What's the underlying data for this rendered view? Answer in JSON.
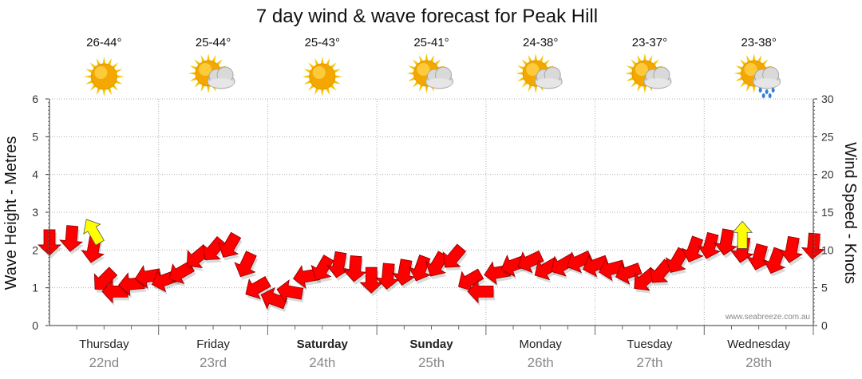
{
  "chart_data": {
    "type": "line",
    "title": "7 day wind & wave forecast for Peak Hill",
    "ylabel_left": "Wave Height - Metres",
    "ylabel_right": "Wind Speed - Knots",
    "ylim_left": [
      0,
      6
    ],
    "ylim_right": [
      0,
      30
    ],
    "yticks_left": [
      "0",
      "1",
      "2",
      "3",
      "4",
      "5",
      "6"
    ],
    "yticks_right": [
      "0",
      "5",
      "10",
      "15",
      "20",
      "25",
      "30"
    ],
    "days": [
      {
        "day": "Thursday",
        "date": "22nd",
        "temp": "26-44°",
        "icon": "sunny-icon",
        "bold": false
      },
      {
        "day": "Friday",
        "date": "23rd",
        "temp": "25-44°",
        "icon": "partly-cloudy-icon",
        "bold": false
      },
      {
        "day": "Saturday",
        "date": "24th",
        "temp": "25-43°",
        "icon": "sunny-icon",
        "bold": true
      },
      {
        "day": "Sunday",
        "date": "25th",
        "temp": "25-41°",
        "icon": "partly-cloudy-icon",
        "bold": true
      },
      {
        "day": "Monday",
        "date": "26th",
        "temp": "24-38°",
        "icon": "partly-cloudy-icon",
        "bold": false
      },
      {
        "day": "Tuesday",
        "date": "27th",
        "temp": "23-37°",
        "icon": "partly-cloudy-icon",
        "bold": false
      },
      {
        "day": "Wednesday",
        "date": "28th",
        "temp": "23-38°",
        "icon": "showers-icon",
        "bold": false
      }
    ],
    "series": [
      {
        "name": "Wind",
        "unit": "knots",
        "color": "#ff0000",
        "x_day": [
          0,
          0.2,
          0.4,
          0.5,
          0.6,
          0.75,
          0.9,
          1.05,
          1.2,
          1.35,
          1.5,
          1.65,
          1.8,
          1.9,
          2.05,
          2.2,
          2.35,
          2.5,
          2.65,
          2.8,
          2.95,
          3.1,
          3.25,
          3.4,
          3.55,
          3.7,
          3.85,
          3.95,
          4.1,
          4.25,
          4.4,
          4.55,
          4.7,
          4.85,
          5.0,
          5.15,
          5.3,
          5.45,
          5.6,
          5.75,
          5.9,
          6.05,
          6.2,
          6.35,
          6.5,
          6.65,
          6.8,
          7.0
        ],
        "speed_knots": [
          11,
          11.5,
          10,
          6,
          4.5,
          5.5,
          6.5,
          6,
          7,
          9,
          10,
          10.5,
          8,
          5,
          3.5,
          4.5,
          6.5,
          7.5,
          8,
          7.5,
          6,
          6.5,
          7,
          7.5,
          8,
          9,
          6,
          4.5,
          7,
          8,
          8.5,
          7.5,
          8,
          8.5,
          8,
          7.5,
          7,
          6,
          7,
          8.5,
          10,
          10.5,
          11,
          10,
          9,
          8.5,
          10,
          10.5
        ],
        "direction_deg": [
          90,
          95,
          100,
          135,
          180,
          175,
          170,
          160,
          150,
          140,
          130,
          120,
          115,
          150,
          200,
          190,
          170,
          120,
          100,
          95,
          90,
          95,
          100,
          110,
          120,
          130,
          150,
          180,
          170,
          160,
          155,
          150,
          150,
          155,
          160,
          165,
          160,
          140,
          130,
          120,
          110,
          105,
          100,
          100,
          105,
          110,
          100,
          95
        ]
      },
      {
        "name": "Waves",
        "unit": "metres",
        "color": "#ffff00",
        "arrows": [
          {
            "x_day": 0.4,
            "height_m": 2.5,
            "direction_deg": 60
          },
          {
            "x_day": 6.35,
            "height_m": 2.4,
            "direction_deg": 90
          }
        ]
      }
    ]
  },
  "watermark": "www.seabreeze.com.au",
  "colors": {
    "wind_arrow": "#ff0000",
    "wave_arrow": "#ffff00",
    "grid": "#b0b0b0",
    "date_text": "#888888"
  }
}
